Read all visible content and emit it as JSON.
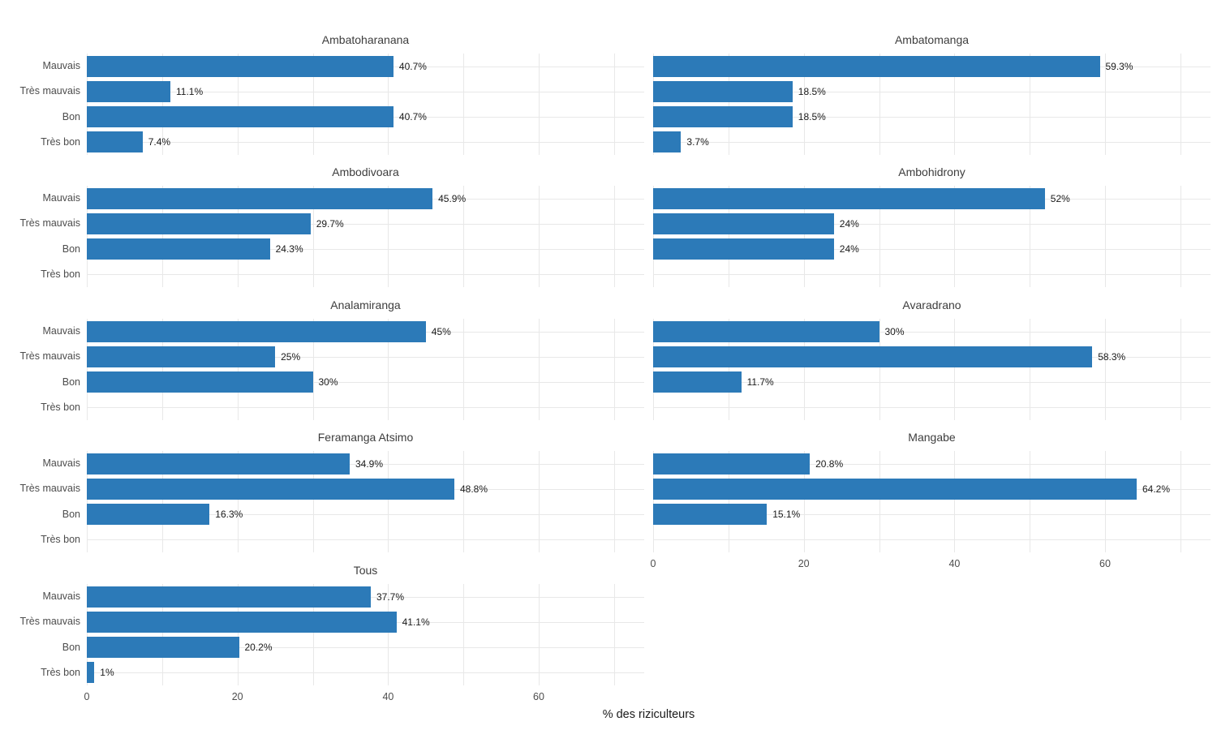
{
  "figure": {
    "colors": {
      "bar": "#2c7ab8",
      "grid": "#e8e8e8",
      "facet_title_text": "#3d3d3d",
      "category_text": "#4d4d4d",
      "tick_text": "#4d4d4d",
      "value_text": "#1a1a1a",
      "background": "#ffffff"
    }
  },
  "chart_data": {
    "type": "bar",
    "orientation": "horizontal",
    "xlabel": "% des riziculteurs",
    "categories": [
      "Mauvais",
      "Très mauvais",
      "Bon",
      "Très bon"
    ],
    "x_ticks": [
      0,
      20,
      40,
      60
    ],
    "x_minor_step": 10,
    "xlim": [
      0,
      74
    ],
    "grid": "on",
    "legend": "none",
    "facet_layout": {
      "columns": 2,
      "rows": 5,
      "last_row_single_left_panel": true
    },
    "facets": [
      {
        "title": "Ambatoharanana",
        "values": [
          40.7,
          11.1,
          40.7,
          7.4
        ],
        "value_labels": [
          "40.7%",
          "11.1%",
          "40.7%",
          "7.4%"
        ],
        "x_axis": false
      },
      {
        "title": "Ambatomanga",
        "values": [
          59.3,
          18.5,
          18.5,
          3.7
        ],
        "value_labels": [
          "59.3%",
          "18.5%",
          "18.5%",
          "3.7%"
        ],
        "x_axis": false
      },
      {
        "title": "Ambodivoara",
        "values": [
          45.9,
          29.7,
          24.3,
          null
        ],
        "value_labels": [
          "45.9%",
          "29.7%",
          "24.3%",
          ""
        ],
        "x_axis": false
      },
      {
        "title": "Ambohidrony",
        "values": [
          52,
          24,
          24,
          null
        ],
        "value_labels": [
          "52%",
          "24%",
          "24%",
          ""
        ],
        "x_axis": false
      },
      {
        "title": "Analamiranga",
        "values": [
          45,
          25,
          30,
          null
        ],
        "value_labels": [
          "45%",
          "25%",
          "30%",
          ""
        ],
        "x_axis": false
      },
      {
        "title": "Avaradrano",
        "values": [
          30,
          58.3,
          11.7,
          null
        ],
        "value_labels": [
          "30%",
          "58.3%",
          "11.7%",
          ""
        ],
        "x_axis": false
      },
      {
        "title": "Feramanga Atsimo",
        "values": [
          34.9,
          48.8,
          16.3,
          null
        ],
        "value_labels": [
          "34.9%",
          "48.8%",
          "16.3%",
          ""
        ],
        "x_axis": false
      },
      {
        "title": "Mangabe",
        "values": [
          20.8,
          64.2,
          15.1,
          null
        ],
        "value_labels": [
          "20.8%",
          "64.2%",
          "15.1%",
          ""
        ],
        "x_axis": true
      },
      {
        "title": "Tous",
        "values": [
          37.7,
          41.1,
          20.2,
          1
        ],
        "value_labels": [
          "37.7%",
          "41.1%",
          "20.2%",
          "1%"
        ],
        "x_axis": true
      }
    ]
  }
}
